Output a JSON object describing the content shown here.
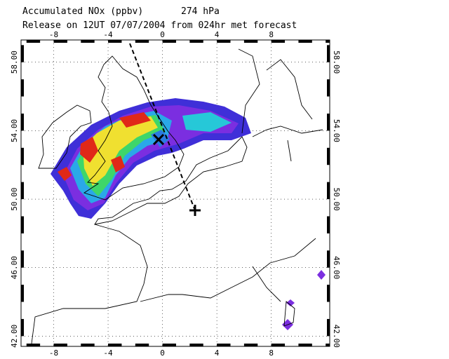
{
  "header": {
    "title_line1": "Accumulated NOx  (ppbv)",
    "pressure": "274 hPa",
    "title_line2": "Release on 12UT 07/07/2004 from 024hr met forecast"
  },
  "map": {
    "xlim": [
      -10.4,
      12.3
    ],
    "ylim": [
      41.4,
      59.3
    ],
    "xticks": [
      -8,
      -4,
      0,
      4,
      8
    ],
    "yticks": [
      {
        "value": 42,
        "label": "42.00"
      },
      {
        "value": 46,
        "label": "46.00"
      },
      {
        "value": 50,
        "label": "50.00"
      },
      {
        "value": 54,
        "label": "54.00"
      },
      {
        "value": 58,
        "label": "58.00"
      }
    ]
  }
}
